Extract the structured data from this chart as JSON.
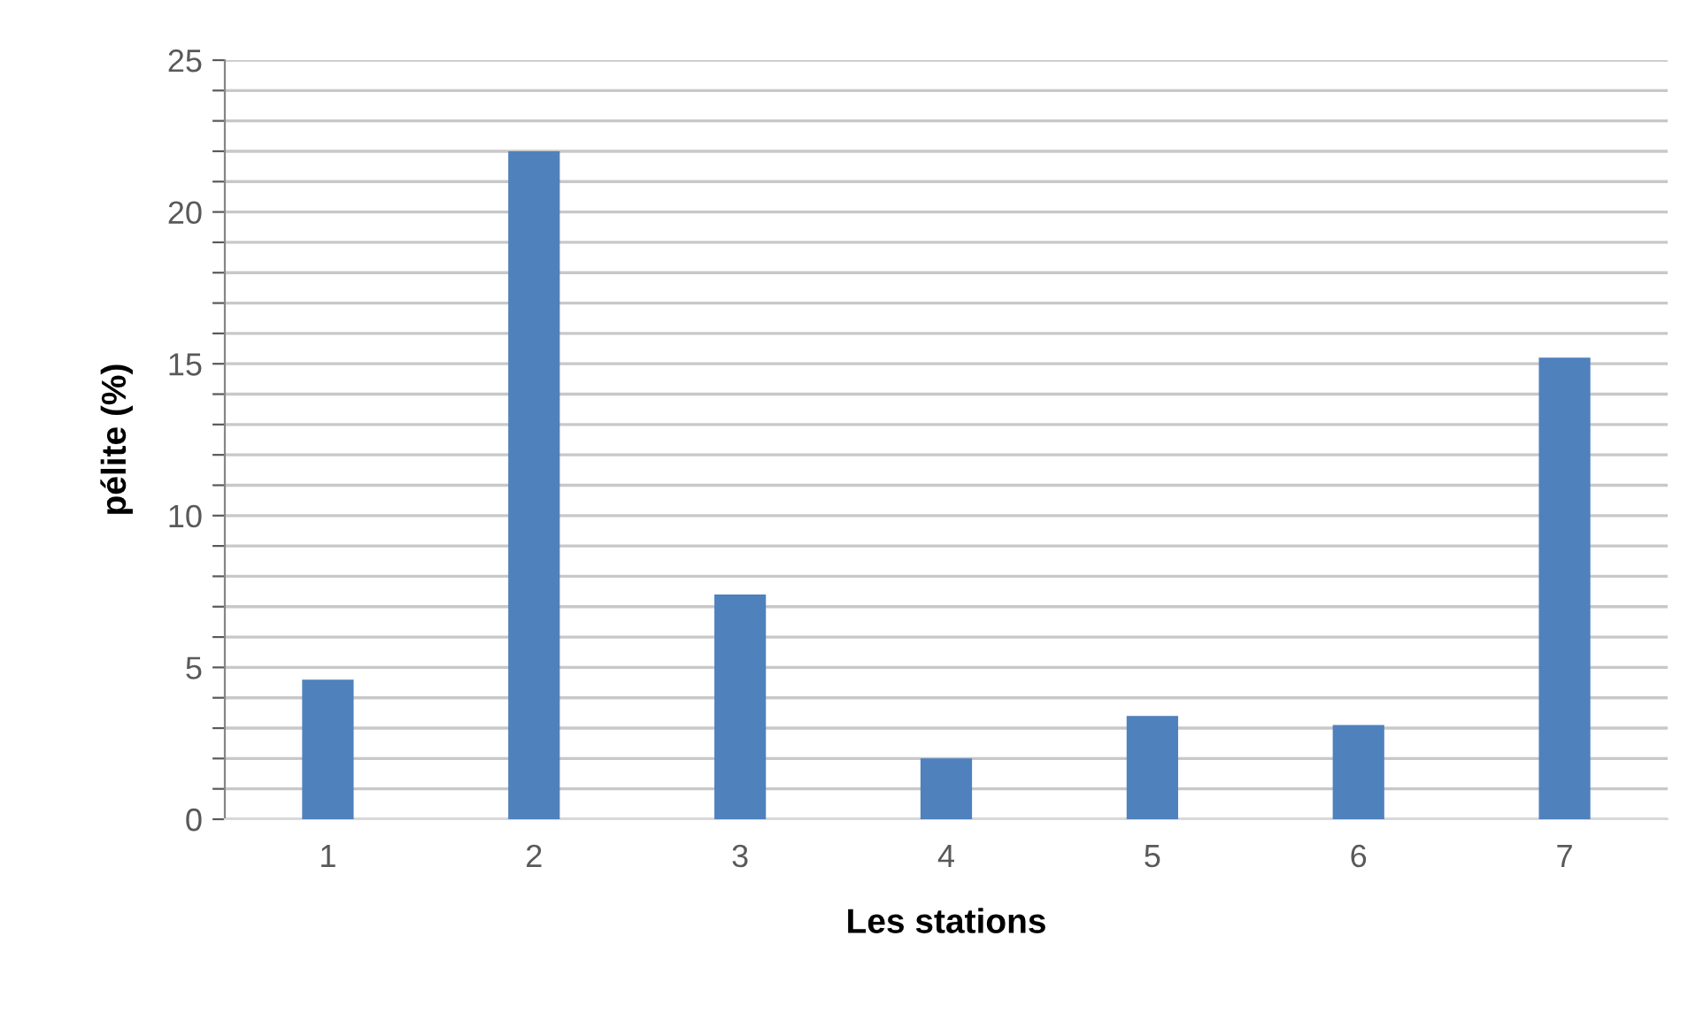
{
  "chart_data": {
    "type": "bar",
    "xlabel": "Les stations",
    "ylabel": "pélite (%)",
    "categories": [
      "1",
      "2",
      "3",
      "4",
      "5",
      "6",
      "7"
    ],
    "values": [
      4.6,
      22.0,
      7.4,
      2.0,
      3.4,
      3.1,
      15.2
    ],
    "color": "#4f81bd",
    "ylim": [
      0,
      25
    ],
    "yticks": [
      0,
      {
        "value": 1,
        "label": null
      },
      {
        "value": 2,
        "label": null
      },
      {
        "value": 3,
        "label": null
      },
      {
        "value": 4,
        "label": null
      },
      5,
      {
        "value": 6,
        "label": null
      },
      {
        "value": 7,
        "label": null
      },
      {
        "value": 8,
        "label": null
      },
      {
        "value": 9,
        "label": null
      },
      10,
      {
        "value": 11,
        "label": null
      },
      {
        "value": 12,
        "label": null
      },
      {
        "value": 13,
        "label": null
      },
      {
        "value": 14,
        "label": null
      },
      15,
      {
        "value": 16,
        "label": null
      },
      {
        "value": 17,
        "label": null
      },
      {
        "value": 18,
        "label": null
      },
      {
        "value": 19,
        "label": null
      },
      20,
      {
        "value": 21,
        "label": null
      },
      {
        "value": 22,
        "label": null
      },
      {
        "value": 23,
        "label": null
      },
      {
        "value": 24,
        "label": null
      },
      25
    ],
    "grid": "y",
    "legend": false
  }
}
